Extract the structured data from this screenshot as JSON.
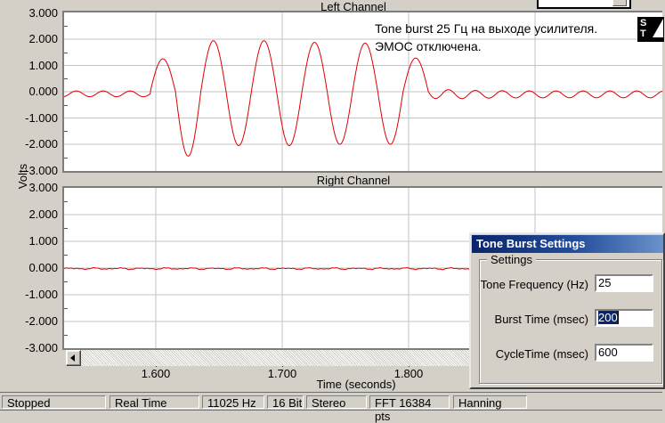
{
  "charts": [
    {
      "title": "Left Channel"
    },
    {
      "title": "Right Channel"
    }
  ],
  "axis": {
    "ylabel": "Volts",
    "xlabel": "Time (seconds)",
    "y_tick_labels": [
      "3.000",
      "2.000",
      "1.000",
      "0.000",
      "-1.000",
      "-2.000",
      "-3.000"
    ],
    "x_ticks": [
      {
        "t": 1.6,
        "label": "1.600"
      },
      {
        "t": 1.7,
        "label": "1.700"
      },
      {
        "t": 1.8,
        "label": "1.800"
      }
    ]
  },
  "annotation": {
    "line1": "Tone burst 25 Гц на выходе усилителя.",
    "line2": "ЭМОС отключена."
  },
  "watermark": {
    "top": "S",
    "bottom": "T"
  },
  "dialog": {
    "title": "Tone Burst Settings",
    "group_label": "Settings",
    "fields": [
      {
        "label": "Tone Frequency (Hz)",
        "value": "25",
        "selected": false
      },
      {
        "label": "Burst Time (msec)",
        "value": "200",
        "selected": true
      },
      {
        "label": "CycleTime (msec)",
        "value": "600",
        "selected": false
      }
    ]
  },
  "statusbar": [
    {
      "label": "Stopped"
    },
    {
      "label": "Real Time"
    },
    {
      "label": "11025 Hz"
    },
    {
      "label": "16 Bit"
    },
    {
      "label": "Stereo"
    },
    {
      "label": "FFT 16384 pts"
    },
    {
      "label": "Hanning"
    }
  ],
  "colors": {
    "window_bg": "#d4d0c8",
    "trace": "#dd0000",
    "grid": "#c3c3c3",
    "titlebar_start": "#0a246a",
    "titlebar_end": "#6a92cb",
    "selection": "#0a246a"
  },
  "chart_data": [
    {
      "name": "Left Channel",
      "type": "line",
      "color": "#dd0000",
      "xlabel": "Time (seconds)",
      "ylabel": "Volts",
      "x_range": [
        1.5275,
        2.0
      ],
      "ylim": [
        -3,
        3
      ],
      "x_gridlines": [
        1.6,
        1.7,
        1.8,
        1.9
      ],
      "y_gridline_step": 1,
      "x_tick_labels": [
        "1.600",
        "1.700",
        "1.800"
      ],
      "signal": {
        "description": "25 Hz tone burst (~200 ms) on amplifier output, small ripple before and after burst",
        "burst": {
          "freq_hz": 25,
          "start_t": 1.5956,
          "half_cycle_peaks": [
            1.25,
            -2.45,
            1.94,
            -2.05,
            1.94,
            -2.05,
            1.88,
            -2.0,
            1.85,
            -2.0,
            1.28
          ]
        },
        "pre_ripple": {
          "freq_hz": 47,
          "amp": 0.11,
          "offset": -0.08
        },
        "post_ripple": {
          "freq_hz": 47,
          "amp_start": 0.22,
          "amp_end": 0.13,
          "offset": -0.1
        }
      }
    },
    {
      "name": "Right Channel",
      "type": "line",
      "color": "#dd0000",
      "x_range": [
        1.5275,
        2.0
      ],
      "ylim": [
        -3,
        3
      ],
      "x_gridlines": [
        1.6,
        1.7,
        1.8,
        1.9
      ],
      "signal": {
        "description": "near-zero flat trace with small noise",
        "baseline": -0.02,
        "noise_amp": 0.03
      }
    }
  ]
}
